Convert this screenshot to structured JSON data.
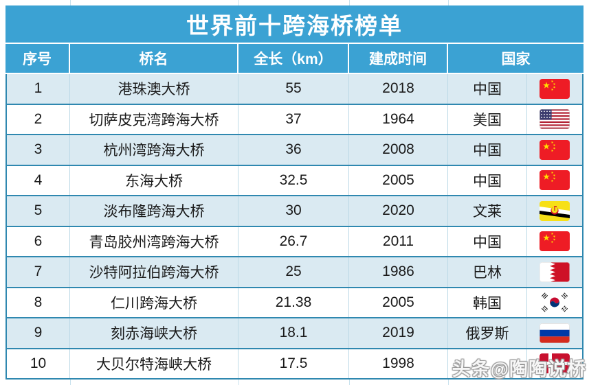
{
  "page": {
    "title": "世界前十跨海桥榜单"
  },
  "table": {
    "headers": [
      "序号",
      "桥名",
      "全长（km）",
      "建成时间",
      "国家"
    ],
    "rows": [
      {
        "no": "1",
        "name": "港珠澳大桥",
        "length": "55",
        "year": "2018",
        "country": "中国",
        "flag": "china"
      },
      {
        "no": "2",
        "name": "切萨皮克湾跨海大桥",
        "length": "37",
        "year": "1964",
        "country": "美国",
        "flag": "usa"
      },
      {
        "no": "3",
        "name": "杭州湾跨海大桥",
        "length": "36",
        "year": "2008",
        "country": "中国",
        "flag": "china"
      },
      {
        "no": "4",
        "name": "东海大桥",
        "length": "32.5",
        "year": "2005",
        "country": "中国",
        "flag": "china"
      },
      {
        "no": "5",
        "name": "淡布隆跨海大桥",
        "length": "30",
        "year": "2020",
        "country": "文莱",
        "flag": "brunei"
      },
      {
        "no": "6",
        "name": "青岛胶州湾跨海大桥",
        "length": "26.7",
        "year": "2011",
        "country": "中国",
        "flag": "china"
      },
      {
        "no": "7",
        "name": "沙特阿拉伯跨海大桥",
        "length": "25",
        "year": "1986",
        "country": "巴林",
        "flag": "bahrain"
      },
      {
        "no": "8",
        "name": "仁川跨海大桥",
        "length": "21.38",
        "year": "2005",
        "country": "韩国",
        "flag": "south-korea"
      },
      {
        "no": "9",
        "name": "刻赤海峡大桥",
        "length": "18.1",
        "year": "2019",
        "country": "俄罗斯",
        "flag": "russia"
      },
      {
        "no": "10",
        "name": "大贝尔特海峡大桥",
        "length": "17.5",
        "year": "1998",
        "country": "",
        "flag": "denmark"
      }
    ]
  },
  "watermark": "头条@陶陶说桥",
  "colors": {
    "header_blue": "#3BA2D3",
    "row_alt_blue": "#DAEAF2",
    "border_strong": "#2F88B0",
    "border_light": "#BCD9E6",
    "title_text": "#FFFFFF",
    "body_text": "#1A1A1A"
  },
  "chart_data": {
    "type": "table",
    "title": "世界前十跨海桥榜单",
    "columns": [
      "序号",
      "桥名",
      "全长（km）",
      "建成时间",
      "国家"
    ],
    "rows": [
      [
        1,
        "港珠澳大桥",
        55,
        2018,
        "中国"
      ],
      [
        2,
        "切萨皮克湾跨海大桥",
        37,
        1964,
        "美国"
      ],
      [
        3,
        "杭州湾跨海大桥",
        36,
        2008,
        "中国"
      ],
      [
        4,
        "东海大桥",
        32.5,
        2005,
        "中国"
      ],
      [
        5,
        "淡布隆跨海大桥",
        30,
        2020,
        "文莱"
      ],
      [
        6,
        "青岛胶州湾跨海大桥",
        26.7,
        2011,
        "中国"
      ],
      [
        7,
        "沙特阿拉伯跨海大桥",
        25,
        1986,
        "巴林"
      ],
      [
        8,
        "仁川跨海大桥",
        21.38,
        2005,
        "韩国"
      ],
      [
        9,
        "刻赤海峡大桥",
        18.1,
        2019,
        "俄罗斯"
      ],
      [
        10,
        "大贝尔特海峡大桥",
        17.5,
        1998,
        ""
      ]
    ]
  }
}
